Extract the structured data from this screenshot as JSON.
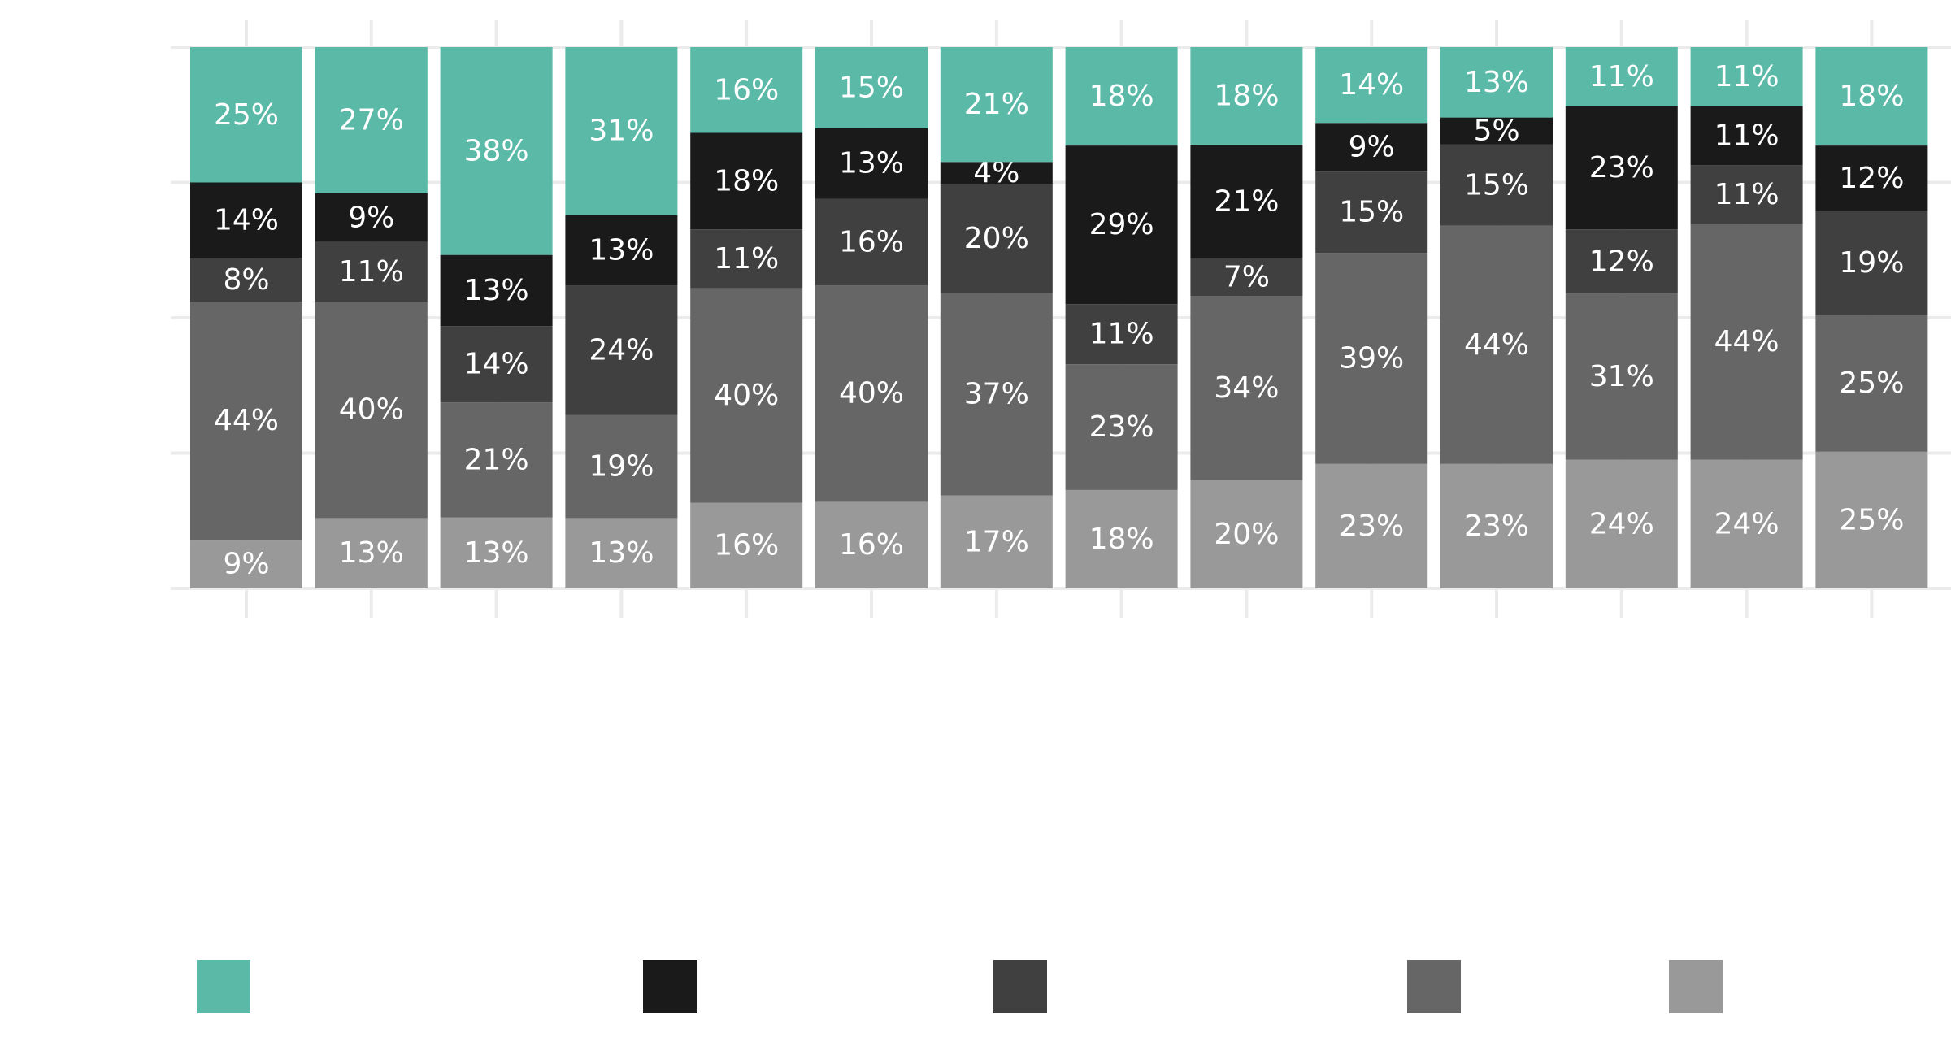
{
  "chart_data": {
    "type": "bar",
    "stacked": true,
    "orientation": "vertical",
    "normalized": true,
    "value_format": "percent",
    "grid": true,
    "legend_position": "bottom",
    "title": "",
    "xlabel": "",
    "ylabel": "",
    "ylim": [
      0,
      100
    ],
    "categories": [
      "",
      "",
      "",
      "",
      "",
      "",
      "",
      "",
      "",
      "",
      "",
      "",
      "",
      ""
    ],
    "series": [
      {
        "color": "#999999",
        "values": [
          9,
          13,
          13,
          13,
          16,
          16,
          17,
          18,
          20,
          23,
          23,
          24,
          24,
          25
        ]
      },
      {
        "color": "#666666",
        "values": [
          44,
          40,
          21,
          19,
          40,
          40,
          37,
          23,
          34,
          39,
          44,
          31,
          44,
          25
        ]
      },
      {
        "color": "#404040",
        "values": [
          8,
          11,
          14,
          24,
          11,
          16,
          20,
          11,
          7,
          15,
          15,
          12,
          11,
          19
        ]
      },
      {
        "color": "#1a1a1a",
        "values": [
          14,
          9,
          13,
          13,
          18,
          13,
          4,
          29,
          21,
          9,
          5,
          23,
          11,
          12
        ]
      },
      {
        "color": "#5ab9a7",
        "values": [
          25,
          27,
          38,
          31,
          16,
          15,
          21,
          18,
          18,
          14,
          13,
          11,
          11,
          18
        ]
      }
    ]
  }
}
